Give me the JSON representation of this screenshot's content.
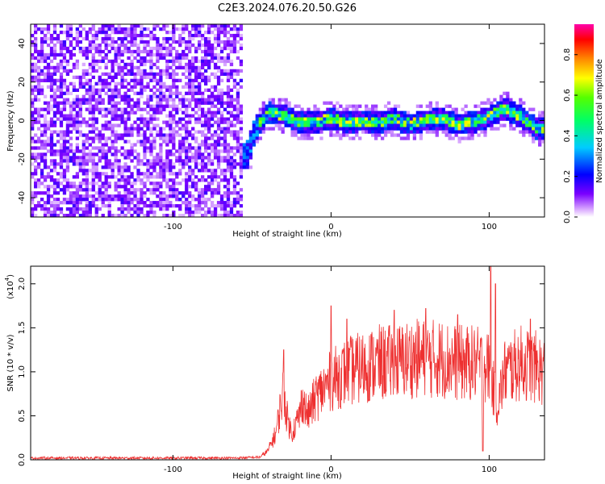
{
  "title": "C2E3.2024.076.20.50.G26",
  "chart_data": [
    {
      "type": "heatmap",
      "xlabel": "Height of straight line (km)",
      "ylabel": "Frequency (Hz)",
      "xlim": [
        -190,
        135
      ],
      "ylim": [
        -50,
        50
      ],
      "x_ticks": [
        "-100",
        "0",
        "100"
      ],
      "x_tick_values": [
        -100,
        0,
        100
      ],
      "y_ticks": [
        "40",
        "20",
        "0",
        "-20",
        "-40"
      ],
      "y_tick_values": [
        40,
        20,
        0,
        -20,
        -40
      ],
      "colorbar": {
        "label": "Normalized spectral amplitude",
        "range": [
          0,
          0.95
        ],
        "ticks": [
          "0.0",
          "0.2",
          "0.4",
          "0.6",
          "0.8"
        ],
        "tick_values": [
          0,
          0.2,
          0.4,
          0.6,
          0.8
        ]
      },
      "ridge_center": [
        [
          -53,
          -18
        ],
        [
          -48,
          -5
        ],
        [
          -40,
          4
        ],
        [
          -30,
          3
        ],
        [
          -20,
          -1
        ],
        [
          -10,
          -1
        ],
        [
          0,
          1
        ],
        [
          10,
          -1
        ],
        [
          20,
          0
        ],
        [
          30,
          -1
        ],
        [
          40,
          1
        ],
        [
          50,
          -2
        ],
        [
          60,
          0
        ],
        [
          70,
          1
        ],
        [
          80,
          -2
        ],
        [
          90,
          -1
        ],
        [
          100,
          2
        ],
        [
          110,
          6
        ],
        [
          120,
          2
        ],
        [
          130,
          -4
        ]
      ]
    },
    {
      "type": "line",
      "xlabel": "Height of straight line (km)",
      "ylabel": "SNR (10 * v/v)",
      "y_multiplier": "x10^4",
      "y_multiplier_text": "(x10",
      "y_multiplier_exp": "4",
      "xlim": [
        -190,
        135
      ],
      "ylim": [
        0,
        2.2
      ],
      "x_ticks": [
        "-100",
        "0",
        "100"
      ],
      "x_tick_values": [
        -100,
        0,
        100
      ],
      "y_ticks": [
        "0.0",
        "0.5",
        "1.0",
        "1.5",
        "2.0"
      ],
      "y_tick_values": [
        0,
        0.5,
        1.0,
        1.5,
        2.0
      ],
      "series_color": "#ee3030",
      "series": [
        {
          "x": [
            -190,
            -150,
            -100,
            -60,
            -45,
            -40,
            -35,
            -32,
            -30,
            -28,
            -25,
            -20,
            -18,
            -15,
            -10,
            -5,
            0,
            10,
            20,
            30,
            40,
            50,
            60,
            70,
            80,
            90,
            100,
            105,
            110,
            120,
            130,
            135
          ],
          "values": [
            0.02,
            0.02,
            0.02,
            0.02,
            0.03,
            0.1,
            0.3,
            0.6,
            0.8,
            0.5,
            0.3,
            0.5,
            0.7,
            0.5,
            0.7,
            0.8,
            0.9,
            1.0,
            1.05,
            1.1,
            1.1,
            1.15,
            1.15,
            1.15,
            1.1,
            1.1,
            1.05,
            0.6,
            1.0,
            1.1,
            1.05,
            1.0
          ]
        }
      ],
      "spikes": [
        {
          "x": -30,
          "y": 1.25
        },
        {
          "x": 0,
          "y": 1.75
        },
        {
          "x": 10,
          "y": 1.6
        },
        {
          "x": 40,
          "y": 1.7
        },
        {
          "x": 60,
          "y": 1.72
        },
        {
          "x": 80,
          "y": 1.65
        },
        {
          "x": 101,
          "y": 2.2
        },
        {
          "x": 104,
          "y": 2.0
        },
        {
          "x": 96,
          "y": 0.1
        },
        {
          "x": 126,
          "y": 1.6
        }
      ]
    }
  ]
}
